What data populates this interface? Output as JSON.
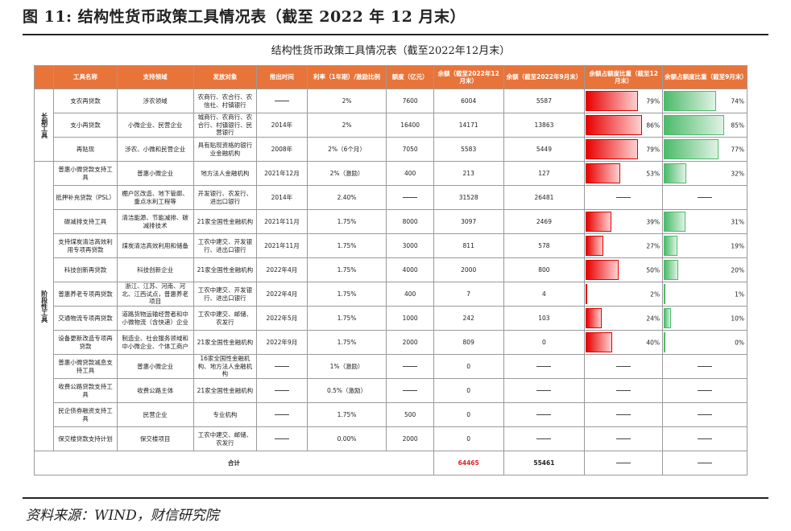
{
  "figure_title": "图 11:  结构性货币政策工具情况表（截至 2022 年 12 月末）",
  "table_title": "结构性货币政策工具情况表（截至2022年12月末）",
  "headers": [
    "工具名称",
    "支持领域",
    "发放对象",
    "推出时间",
    "利率（1年期）/激励比例",
    "额度（亿元）",
    "余额（截至2022年12月末）",
    "余额（截至2022年9月末）",
    "余额占额度比重（截至12月末）",
    "余额占额度比重（截至9月末）"
  ],
  "groups": [
    {
      "label": "长期工具"
    },
    {
      "label": "阶段性工具"
    }
  ],
  "rows": [
    {
      "name": "支农再贷款",
      "field": "涉农领域",
      "target": "农商行、农合行、农信社、村镇银行",
      "time": "",
      "rate": "2%",
      "quota": "7600",
      "bal12": "6004",
      "bal9": "5587",
      "r12_label": "79%",
      "r12": 79,
      "r9_label": "74%",
      "r9": 74
    },
    {
      "name": "支小再贷款",
      "field": "小微企业、民营企业",
      "target": "城商行、农商行、农合行、村镇银行、民营银行",
      "time": "2014年",
      "rate": "2%",
      "quota": "16400",
      "bal12": "14171",
      "bal9": "13863",
      "r12_label": "86%",
      "r12": 86,
      "r9_label": "85%",
      "r9": 85
    },
    {
      "name": "再贴现",
      "field": "涉农、小微和民营企业",
      "target": "具有贴现资格的银行业金融机构",
      "time": "2008年",
      "rate": "2%（6个月）",
      "quota": "7050",
      "bal12": "5583",
      "bal9": "5449",
      "r12_label": "79%",
      "r12": 79,
      "r9_label": "77%",
      "r9": 77
    },
    {
      "name": "普惠小微贷款支持工具",
      "field": "普惠小微企业",
      "target": "地方法人金融机构",
      "time": "2021年12月",
      "rate": "2%（激励）",
      "quota": "400",
      "bal12": "213",
      "bal9": "127",
      "r12_label": "53%",
      "r12": 53,
      "r9_label": "32%",
      "r9": 32
    },
    {
      "name": "抵押补充贷款（PSL）",
      "field": "棚户区改造、地下管廊、重点水利工程等",
      "target": "开发银行、农发行、进出口银行",
      "time": "2014年",
      "rate": "2.40%",
      "quota": "",
      "bal12": "31528",
      "bal9": "26481",
      "r12_label": "",
      "r12": null,
      "r9_label": "",
      "r9": null
    },
    {
      "name": "碳减排支持工具",
      "field": "清洁能源、节能减排、碳减排技术",
      "target": "21家全国性金融机构",
      "time": "2021年11月",
      "rate": "1.75%",
      "quota": "8000",
      "bal12": "3097",
      "bal9": "2469",
      "r12_label": "39%",
      "r12": 39,
      "r9_label": "31%",
      "r9": 31
    },
    {
      "name": "支持煤炭清洁高效利用专项再贷款",
      "field": "煤炭清洁高效利用和储备",
      "target": "工农中建交、开发银行、进出口银行",
      "time": "2021年11月",
      "rate": "1.75%",
      "quota": "3000",
      "bal12": "811",
      "bal9": "578",
      "r12_label": "27%",
      "r12": 27,
      "r9_label": "19%",
      "r9": 19
    },
    {
      "name": "科技创新再贷款",
      "field": "科技创新企业",
      "target": "21家全国性金融机构",
      "time": "2022年4月",
      "rate": "1.75%",
      "quota": "4000",
      "bal12": "2000",
      "bal9": "800",
      "r12_label": "50%",
      "r12": 50,
      "r9_label": "20%",
      "r9": 20
    },
    {
      "name": "普惠养老专项再贷款",
      "field": "浙江、江苏、河南、河北、江西试点，普惠养老项目",
      "target": "工农中建交、开发银行、进出口银行",
      "time": "2022年4月",
      "rate": "1.75%",
      "quota": "400",
      "bal12": "7",
      "bal9": "4",
      "r12_label": "2%",
      "r12": 2,
      "r9_label": "1%",
      "r9": 1
    },
    {
      "name": "交通物流专项再贷款",
      "field": "道路货物运输经营者和中小微物流（含快递）企业",
      "target": "工农中建交、邮储、农发行",
      "time": "2022年5月",
      "rate": "1.75%",
      "quota": "1000",
      "bal12": "242",
      "bal9": "103",
      "r12_label": "24%",
      "r12": 24,
      "r9_label": "10%",
      "r9": 10
    },
    {
      "name": "设备更新改造专项再贷款",
      "field": "制造业、社会服务领域和中小微企业、个体工商户",
      "target": "21家全国性金融机构",
      "time": "2022年9月",
      "rate": "1.75%",
      "quota": "2000",
      "bal12": "809",
      "bal9": "0",
      "r12_label": "40%",
      "r12": 40,
      "r9_label": "0%",
      "r9": 0
    },
    {
      "name": "普惠小微贷款减息支持工具",
      "field": "普惠小微企业",
      "target": "16家全国性金融机构、地方法人金融机构",
      "time": "",
      "rate": "1%（激励）",
      "quota": "",
      "bal12": "0",
      "bal9": "",
      "r12_label": "",
      "r12": null,
      "r9_label": "",
      "r9": null
    },
    {
      "name": "收费公路贷款支持工具",
      "field": "收费公路主体",
      "target": "21家全国性金融机构",
      "time": "",
      "rate": "0.5%（激励）",
      "quota": "",
      "bal12": "0",
      "bal9": "",
      "r12_label": "",
      "r12": null,
      "r9_label": "",
      "r9": null
    },
    {
      "name": "民企债券融资支持工具",
      "field": "民营企业",
      "target": "专业机构",
      "time": "",
      "rate": "1.75%",
      "quota": "500",
      "bal12": "0",
      "bal9": "",
      "r12_label": "",
      "r12": null,
      "r9_label": "",
      "r9": null
    },
    {
      "name": "保交楼贷款支持计划",
      "field": "保交楼项目",
      "target": "工农中建交、邮储、农发行",
      "time": "",
      "rate": "0.00%",
      "quota": "2000",
      "bal12": "0",
      "bal9": "",
      "r12_label": "",
      "r12": null,
      "r9_label": "",
      "r9": null
    }
  ],
  "total": {
    "label": "合计",
    "bal12": "64465",
    "bal9": "55461"
  },
  "source": "资料来源：WIND，财信研究院"
}
